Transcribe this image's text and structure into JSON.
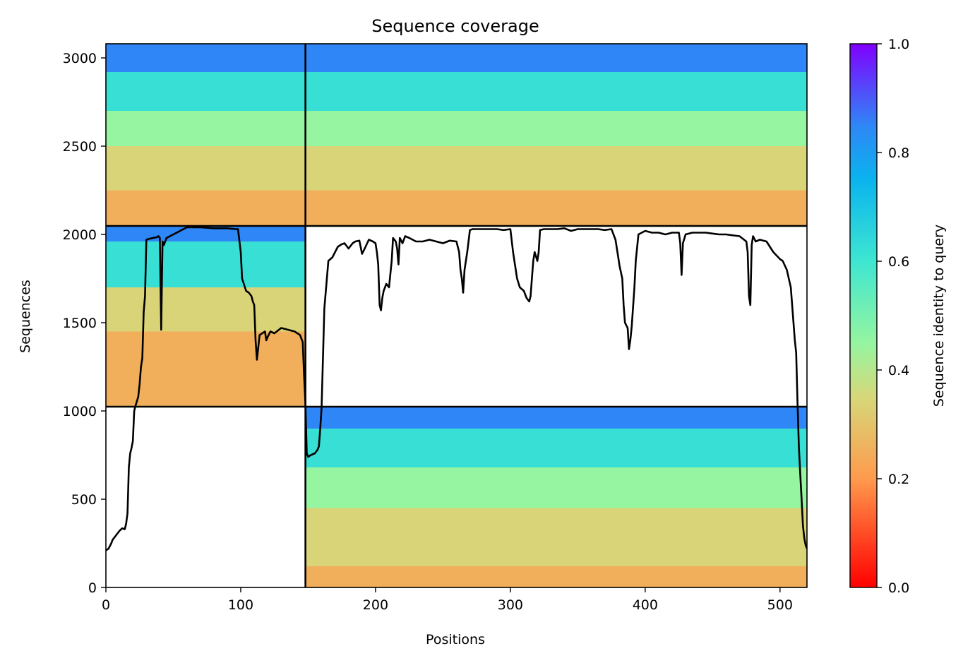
{
  "chart_data": {
    "type": "heatmap",
    "title": "Sequence coverage",
    "xlabel": "Positions",
    "ylabel": "Sequences",
    "xlim": [
      0,
      520
    ],
    "ylim": [
      0,
      3080
    ],
    "xticks": [
      0,
      100,
      200,
      300,
      400,
      500
    ],
    "yticks": [
      0,
      500,
      1000,
      1500,
      2000,
      2500,
      3000
    ],
    "grid": false,
    "colorbar": {
      "label": "Sequence identity to query",
      "range": [
        0,
        1
      ],
      "ticks": [
        "0.0",
        "0.2",
        "0.4",
        "0.6",
        "0.8",
        "1.0"
      ],
      "colormap": "rainbow"
    },
    "chain_boundaries": {
      "positions": [
        148
      ],
      "sequences": [
        1024,
        2048
      ]
    },
    "blocks": [
      {
        "name": "chain-1-pairing",
        "x": [
          0,
          148
        ],
        "y": [
          2048,
          3080
        ],
        "bands": [
          {
            "y": [
              2920,
              3080
            ],
            "identity": 0.85
          },
          {
            "y": [
              2700,
              2920
            ],
            "identity": 0.62
          },
          {
            "y": [
              2500,
              2700
            ],
            "identity": 0.45
          },
          {
            "y": [
              2250,
              2500
            ],
            "identity": 0.34
          },
          {
            "y": [
              2048,
              2250
            ],
            "identity": 0.25
          }
        ]
      },
      {
        "name": "chain-2-pairing",
        "x": [
          148,
          520
        ],
        "y": [
          2048,
          3080
        ],
        "bands": [
          {
            "y": [
              2920,
              3080
            ],
            "identity": 0.85
          },
          {
            "y": [
              2700,
              2920
            ],
            "identity": 0.62
          },
          {
            "y": [
              2500,
              2700
            ],
            "identity": 0.45
          },
          {
            "y": [
              2250,
              2500
            ],
            "identity": 0.34
          },
          {
            "y": [
              2048,
              2250
            ],
            "identity": 0.25
          }
        ]
      },
      {
        "name": "chain-1-unpaired",
        "x": [
          0,
          148
        ],
        "y": [
          1024,
          2048
        ],
        "bands": [
          {
            "y": [
              1960,
              2048
            ],
            "identity": 0.85
          },
          {
            "y": [
              1700,
              1960
            ],
            "identity": 0.62
          },
          {
            "y": [
              1450,
              1700
            ],
            "identity": 0.34
          },
          {
            "y": [
              1024,
              1450
            ],
            "identity": 0.25
          }
        ]
      },
      {
        "name": "chain-2-unpaired",
        "x": [
          148,
          520
        ],
        "y": [
          0,
          1024
        ],
        "bands": [
          {
            "y": [
              900,
              1024
            ],
            "identity": 0.85
          },
          {
            "y": [
              680,
              900
            ],
            "identity": 0.62
          },
          {
            "y": [
              450,
              680
            ],
            "identity": 0.45
          },
          {
            "y": [
              120,
              450
            ],
            "identity": 0.34
          },
          {
            "y": [
              0,
              120
            ],
            "identity": 0.25
          }
        ]
      }
    ],
    "series": [
      {
        "type": "line",
        "x": [
          0,
          2,
          4,
          5,
          8,
          10,
          12,
          14,
          15,
          16,
          17,
          18,
          19,
          20,
          21,
          22,
          24,
          25,
          26,
          27,
          28,
          29,
          30,
          32,
          35,
          38,
          39,
          40,
          41,
          42,
          43,
          45,
          50,
          55,
          60,
          70,
          80,
          90,
          96,
          98,
          100,
          101,
          104,
          106,
          108,
          109,
          110,
          111,
          112,
          114,
          116,
          118,
          119,
          120,
          122,
          125,
          130,
          135,
          140,
          144,
          145,
          146,
          147,
          148,
          149,
          150,
          152,
          155,
          157,
          158,
          159,
          160,
          162,
          165,
          168,
          170,
          172,
          174,
          175,
          177,
          180,
          183,
          185,
          188,
          190,
          192,
          195,
          198,
          200,
          201,
          202,
          203,
          204,
          205,
          206,
          208,
          210,
          212,
          213,
          215,
          216,
          217,
          218,
          220,
          222,
          225,
          230,
          235,
          240,
          245,
          250,
          255,
          260,
          262,
          263,
          264,
          265,
          266,
          267,
          268,
          270,
          272,
          275,
          280,
          285,
          290,
          295,
          300,
          302,
          303,
          304,
          305,
          307,
          310,
          312,
          314,
          315,
          316,
          317,
          318,
          320,
          321,
          322,
          325,
          330,
          335,
          340,
          345,
          350,
          355,
          360,
          365,
          370,
          375,
          378,
          380,
          381,
          383,
          384,
          385,
          387,
          388,
          389,
          390,
          392,
          393,
          395,
          400,
          405,
          410,
          415,
          420,
          425,
          426,
          427,
          428,
          430,
          435,
          440,
          445,
          450,
          455,
          460,
          465,
          470,
          475,
          476,
          477,
          478,
          479,
          480,
          482,
          485,
          490,
          495,
          500,
          502,
          505,
          508,
          510,
          511,
          512,
          513,
          514,
          515,
          516,
          517,
          518,
          519,
          520
        ],
        "y": [
          210,
          220,
          250,
          270,
          300,
          320,
          335,
          330,
          360,
          420,
          680,
          760,
          790,
          830,
          1000,
          1030,
          1080,
          1150,
          1250,
          1300,
          1560,
          1650,
          1970,
          1975,
          1980,
          1985,
          1990,
          1980,
          1460,
          1960,
          1940,
          1980,
          2000,
          2020,
          2040,
          2040,
          2035,
          2035,
          2030,
          2030,
          1900,
          1750,
          1680,
          1670,
          1650,
          1620,
          1600,
          1400,
          1290,
          1430,
          1440,
          1450,
          1400,
          1420,
          1450,
          1440,
          1470,
          1460,
          1450,
          1430,
          1410,
          1390,
          1200,
          1040,
          760,
          740,
          750,
          760,
          780,
          800,
          900,
          1020,
          1580,
          1850,
          1870,
          1900,
          1930,
          1940,
          1945,
          1950,
          1920,
          1950,
          1960,
          1965,
          1890,
          1920,
          1970,
          1960,
          1950,
          1900,
          1830,
          1600,
          1570,
          1640,
          1680,
          1720,
          1700,
          1850,
          1980,
          1960,
          1920,
          1830,
          1980,
          1950,
          1990,
          1980,
          1960,
          1960,
          1970,
          1960,
          1950,
          1965,
          1960,
          1900,
          1800,
          1750,
          1670,
          1800,
          1850,
          1900,
          2025,
          2030,
          2030,
          2030,
          2030,
          2030,
          2025,
          2030,
          1900,
          1850,
          1800,
          1750,
          1700,
          1680,
          1640,
          1620,
          1650,
          1750,
          1850,
          1900,
          1850,
          1900,
          2025,
          2030,
          2030,
          2030,
          2035,
          2020,
          2030,
          2030,
          2030,
          2030,
          2025,
          2030,
          1970,
          1870,
          1820,
          1750,
          1600,
          1500,
          1470,
          1350,
          1400,
          1480,
          1700,
          1850,
          2000,
          2020,
          2010,
          2010,
          2000,
          2010,
          2010,
          1950,
          1770,
          1950,
          2000,
          2010,
          2010,
          2010,
          2005,
          2000,
          2000,
          1995,
          1990,
          1960,
          1900,
          1650,
          1600,
          1940,
          1990,
          1960,
          1970,
          1960,
          1900,
          1860,
          1850,
          1800,
          1700,
          1500,
          1400,
          1330,
          1050,
          800,
          640,
          500,
          350,
          280,
          240,
          220
        ]
      }
    ]
  }
}
